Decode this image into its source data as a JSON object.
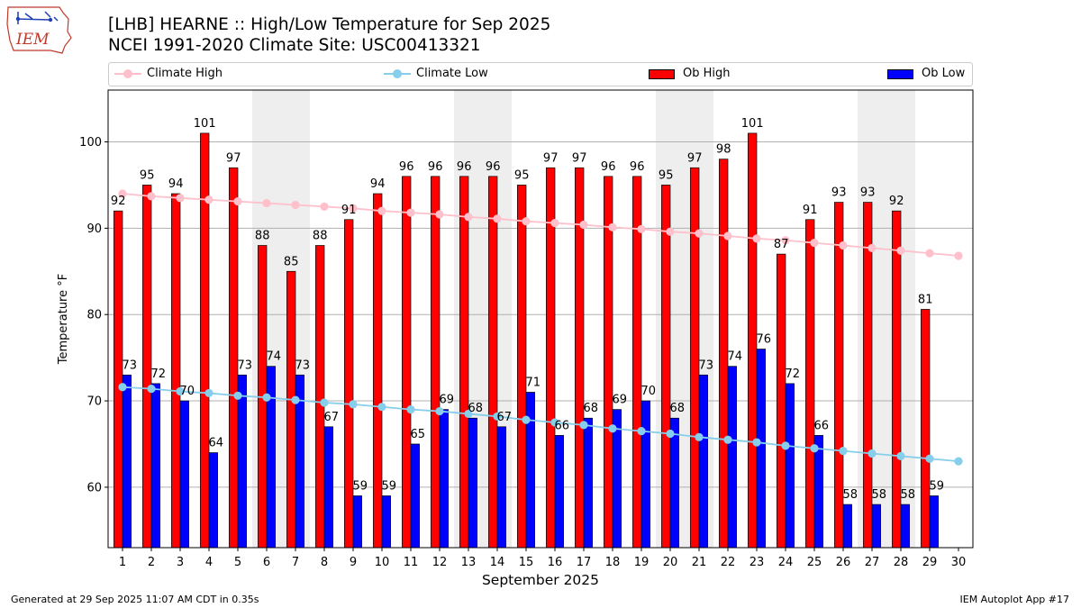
{
  "header": {
    "logo_text": "IEM",
    "title_line1": "[LHB] HEARNE :: High/Low Temperature for Sep 2025",
    "title_line2": "NCEI 1991-2020 Climate Site: USC00413321"
  },
  "legend": [
    {
      "label": "Climate High",
      "kind": "line",
      "color": "#ffc0cb"
    },
    {
      "label": "Climate Low",
      "kind": "line",
      "color": "#87ceeb"
    },
    {
      "label": "Ob High",
      "kind": "bar",
      "color": "#ff0000"
    },
    {
      "label": "Ob Low",
      "kind": "bar",
      "color": "#0000ff"
    }
  ],
  "footer": {
    "left": "Generated at 29 Sep 2025 11:07 AM CDT in 0.35s",
    "right": "IEM Autoplot App #17"
  },
  "chart_data": {
    "type": "bar",
    "xlabel": "September 2025",
    "ylabel": "Temperature °F",
    "ylim": [
      53,
      106
    ],
    "yticks": [
      60,
      70,
      80,
      90,
      100
    ],
    "grid": "horizontal",
    "legend_position": "top",
    "shaded_weekend_days": [
      6,
      7,
      13,
      14,
      20,
      21,
      27,
      28
    ],
    "categories": [
      1,
      2,
      3,
      4,
      5,
      6,
      7,
      8,
      9,
      10,
      11,
      12,
      13,
      14,
      15,
      16,
      17,
      18,
      19,
      20,
      21,
      22,
      23,
      24,
      25,
      26,
      27,
      28,
      29,
      30
    ],
    "series": [
      {
        "name": "Ob High",
        "color": "#ff0000",
        "values": [
          92,
          95,
          94,
          101,
          97,
          88,
          85,
          88,
          91,
          94,
          96,
          96,
          96,
          96,
          95,
          97,
          97,
          96,
          96,
          95,
          97,
          98,
          101,
          87,
          91,
          93,
          93,
          92,
          80.6,
          null
        ],
        "labels": [
          "92",
          "95",
          "94",
          "101",
          "97",
          "88",
          "85",
          "88",
          "91",
          "94",
          "96",
          "96",
          "96",
          "96",
          "95",
          "97",
          "97",
          "96",
          "96",
          "95",
          "97",
          "98",
          "101",
          "87",
          "91",
          "93",
          "93",
          "92",
          "81",
          null
        ]
      },
      {
        "name": "Ob Low",
        "color": "#0000ff",
        "values": [
          73,
          72,
          70,
          64,
          73,
          74,
          73,
          67,
          59,
          59,
          65,
          69,
          68,
          67,
          71,
          66,
          68,
          69,
          70,
          68,
          73,
          74,
          76,
          72,
          66,
          58,
          58,
          58,
          59,
          null
        ],
        "labels": [
          "73",
          "72",
          "70",
          "64",
          "73",
          "74",
          "73",
          "67",
          "59",
          "59",
          "65",
          "69",
          "68",
          "67",
          "71",
          "66",
          "68",
          "69",
          "70",
          "68",
          "73",
          "74",
          "76",
          "72",
          "66",
          "58",
          "58",
          "58",
          "59",
          null
        ]
      },
      {
        "name": "Climate High",
        "color": "#ffc0cb",
        "values": [
          94.0,
          93.7,
          93.5,
          93.3,
          93.1,
          92.9,
          92.7,
          92.5,
          92.3,
          92.0,
          91.8,
          91.6,
          91.3,
          91.1,
          90.8,
          90.6,
          90.4,
          90.1,
          89.9,
          89.6,
          89.4,
          89.1,
          88.8,
          88.6,
          88.3,
          88.0,
          87.7,
          87.4,
          87.1,
          86.8
        ]
      },
      {
        "name": "Climate Low",
        "color": "#87ceeb",
        "values": [
          71.6,
          71.4,
          71.1,
          70.9,
          70.6,
          70.4,
          70.1,
          69.8,
          69.6,
          69.3,
          69.0,
          68.8,
          68.5,
          68.2,
          67.8,
          67.5,
          67.2,
          66.8,
          66.5,
          66.2,
          65.8,
          65.5,
          65.2,
          64.8,
          64.5,
          64.2,
          63.9,
          63.6,
          63.3,
          63.0
        ]
      }
    ]
  }
}
